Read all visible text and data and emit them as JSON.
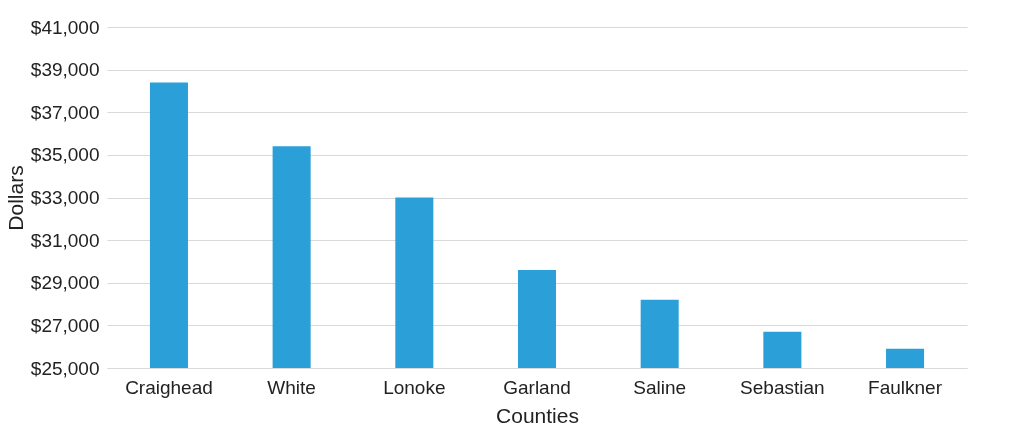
{
  "chart_data": {
    "type": "bar",
    "xlabel": "Counties",
    "ylabel": "Dollars",
    "categories": [
      "Craighead",
      "White",
      "Lonoke",
      "Garland",
      "Saline",
      "Sebastian",
      "Faulkner"
    ],
    "values": [
      38400,
      35400,
      33000,
      29600,
      28200,
      26700,
      25900
    ],
    "color": "#2a9fd8",
    "ylim": [
      25000,
      41000
    ],
    "yticks": [
      {
        "value": 25000,
        "label": "$25,000"
      },
      {
        "value": 27000,
        "label": "$27,000"
      },
      {
        "value": 29000,
        "label": "$29,000"
      },
      {
        "value": 31000,
        "label": "$31,000"
      },
      {
        "value": 33000,
        "label": "$33,000"
      },
      {
        "value": 35000,
        "label": "$35,000"
      },
      {
        "value": 37000,
        "label": "$37,000"
      },
      {
        "value": 39000,
        "label": "$39,000"
      },
      {
        "value": 41000,
        "label": "$41,000"
      }
    ],
    "grid": "y"
  }
}
